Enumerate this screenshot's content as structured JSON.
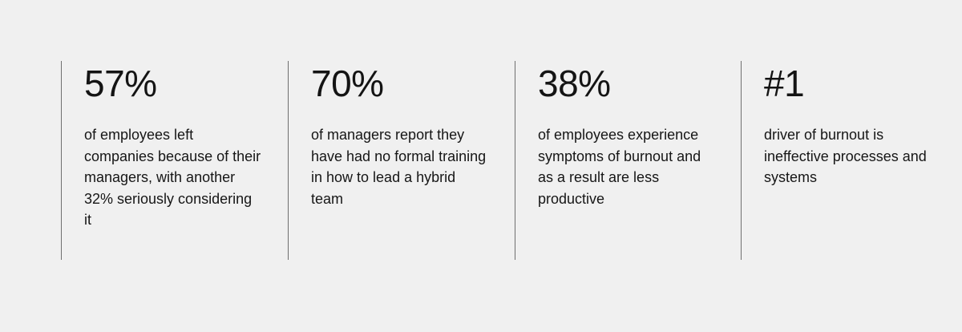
{
  "stats": [
    {
      "value": "57%",
      "description": "of employees left companies because of their managers, with another 32% seriously considering it"
    },
    {
      "value": "70%",
      "description": "of managers report they have had no formal training in how to lead a hybrid team"
    },
    {
      "value": "38%",
      "description": "of employees experience symptoms of burnout and as a result are less productive"
    },
    {
      "value": "#1",
      "description": "driver of burnout is ineffective processes and systems"
    }
  ],
  "colors": {
    "background": "#f0f0f0",
    "text": "#141414",
    "divider": "#6f6f6f"
  }
}
